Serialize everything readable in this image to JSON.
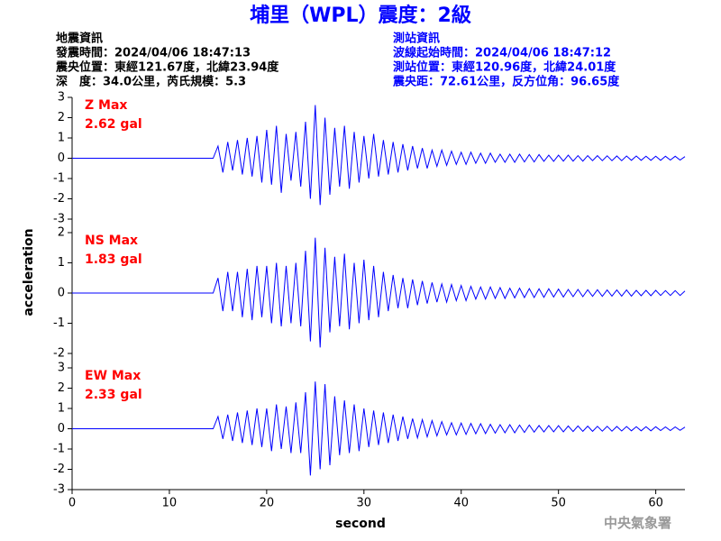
{
  "header": {
    "title": "埔里（WPL）震度：2級",
    "left_info": [
      "地震資訊",
      "發震時間：2024/04/06 18:47:13",
      "震央位置：東經121.67度，北緯23.94度",
      "深　度：34.0公里，芮氏規模：5.3"
    ],
    "right_info": [
      "測站資訊",
      "波線起始時間：2024/04/06 18:47:12",
      "測站位置：東經120.96度，北緯24.01度",
      "震央距：72.61公里，反方位角：96.65度"
    ],
    "footer": "中央氣象署"
  },
  "chart_data": {
    "type": "line",
    "xlabel": "second",
    "ylabel": "acceleration",
    "xlim": [
      0,
      63
    ],
    "xticks": [
      0,
      10,
      20,
      30,
      40,
      50,
      60
    ],
    "x": [
      0,
      0.5,
      1,
      1.5,
      2,
      2.5,
      3,
      3.5,
      4,
      4.5,
      5,
      5.5,
      6,
      6.5,
      7,
      7.5,
      8,
      8.5,
      9,
      9.5,
      10,
      10.5,
      11,
      11.5,
      12,
      12.5,
      13,
      13.5,
      14,
      14.5,
      15,
      15.5,
      16,
      16.5,
      17,
      17.5,
      18,
      18.5,
      19,
      19.5,
      20,
      20.5,
      21,
      21.5,
      22,
      22.5,
      23,
      23.5,
      24,
      24.5,
      25,
      25.5,
      26,
      26.5,
      27,
      27.5,
      28,
      28.5,
      29,
      29.5,
      30,
      30.5,
      31,
      31.5,
      32,
      32.5,
      33,
      33.5,
      34,
      34.5,
      35,
      35.5,
      36,
      36.5,
      37,
      37.5,
      38,
      38.5,
      39,
      39.5,
      40,
      40.5,
      41,
      41.5,
      42,
      42.5,
      43,
      43.5,
      44,
      44.5,
      45,
      45.5,
      46,
      46.5,
      47,
      47.5,
      48,
      48.5,
      49,
      49.5,
      50,
      50.5,
      51,
      51.5,
      52,
      52.5,
      53,
      53.5,
      54,
      54.5,
      55,
      55.5,
      56,
      56.5,
      57,
      57.5,
      58,
      58.5,
      59,
      59.5,
      60,
      60.5,
      61,
      61.5,
      62,
      62.5,
      63
    ],
    "panels": [
      {
        "annotation": [
          "Z Max",
          "2.62 gal"
        ],
        "ylim": [
          -3,
          3
        ],
        "yticks": [
          -3,
          -2,
          -1,
          0,
          1,
          2,
          3
        ],
        "series": [
          {
            "color": "#0000ff",
            "values": [
              0,
              0,
              0,
              0,
              0,
              0,
              0,
              0,
              0,
              0,
              0,
              0,
              0,
              0,
              0,
              0,
              0,
              0,
              0,
              0,
              0,
              0,
              0,
              0,
              0,
              0,
              0,
              0,
              0,
              0,
              0.6,
              -0.7,
              0.8,
              -0.6,
              0.9,
              -0.8,
              1.0,
              -0.9,
              1.1,
              -1.2,
              1.4,
              -1.3,
              1.6,
              -1.7,
              1.2,
              -1.1,
              1.3,
              -1.4,
              1.8,
              -2.0,
              2.62,
              -2.3,
              2.0,
              -1.8,
              1.5,
              -1.4,
              1.6,
              -1.5,
              1.3,
              -1.2,
              1.1,
              -1.0,
              1.2,
              -0.9,
              0.9,
              -0.8,
              0.8,
              -0.7,
              0.7,
              -0.6,
              0.6,
              -0.5,
              0.5,
              -0.5,
              0.4,
              -0.4,
              0.4,
              -0.35,
              0.35,
              -0.3,
              0.3,
              -0.3,
              0.3,
              -0.25,
              0.25,
              -0.25,
              0.25,
              -0.2,
              0.2,
              -0.2,
              0.2,
              -0.2,
              0.2,
              -0.18,
              0.18,
              -0.18,
              0.18,
              -0.15,
              0.15,
              -0.15,
              0.15,
              -0.14,
              0.15,
              -0.14,
              0.13,
              -0.14,
              0.13,
              -0.12,
              0.13,
              -0.12,
              0.12,
              -0.12,
              0.11,
              -0.12,
              0.11,
              -0.1,
              0.11,
              -0.1,
              0.1,
              -0.1,
              0.1,
              -0.1,
              0.1,
              -0.09,
              0.1,
              -0.09,
              0.08
            ]
          }
        ]
      },
      {
        "annotation": [
          "NS Max",
          "1.83 gal"
        ],
        "ylim": [
          -2,
          2
        ],
        "yticks": [
          -2,
          -1,
          0,
          1,
          2
        ],
        "series": [
          {
            "color": "#0000ff",
            "values": [
              0,
              0,
              0,
              0,
              0,
              0,
              0,
              0,
              0,
              0,
              0,
              0,
              0,
              0,
              0,
              0,
              0,
              0,
              0,
              0,
              0,
              0,
              0,
              0,
              0,
              0,
              0,
              0,
              0,
              0,
              0.5,
              -0.6,
              0.7,
              -0.6,
              0.7,
              -0.8,
              0.8,
              -0.9,
              0.9,
              -0.8,
              0.9,
              -1.0,
              1.0,
              -1.1,
              0.9,
              -1.0,
              1.0,
              -1.1,
              1.4,
              -1.6,
              1.83,
              -1.8,
              1.5,
              -1.3,
              1.2,
              -1.1,
              1.3,
              -1.2,
              1.0,
              -1.0,
              1.1,
              -0.9,
              0.9,
              -0.8,
              0.7,
              -0.6,
              0.6,
              -0.5,
              0.5,
              -0.5,
              0.45,
              -0.4,
              0.4,
              -0.35,
              0.35,
              -0.3,
              0.3,
              -0.3,
              0.28,
              -0.25,
              0.25,
              -0.25,
              0.22,
              -0.2,
              0.2,
              -0.2,
              0.2,
              -0.18,
              0.18,
              -0.18,
              0.16,
              -0.16,
              0.16,
              -0.15,
              0.15,
              -0.15,
              0.14,
              -0.14,
              0.14,
              -0.13,
              0.13,
              -0.13,
              0.12,
              -0.12,
              0.12,
              -0.12,
              0.11,
              -0.11,
              0.11,
              -0.11,
              0.1,
              -0.1,
              0.1,
              -0.1,
              0.1,
              -0.1,
              0.09,
              -0.09,
              0.09,
              -0.09,
              0.09,
              -0.08,
              0.08,
              -0.08,
              0.08,
              -0.08,
              0.07
            ]
          }
        ]
      },
      {
        "annotation": [
          "EW Max",
          "2.33 gal"
        ],
        "ylim": [
          -3,
          3
        ],
        "yticks": [
          -3,
          -2,
          -1,
          0,
          1,
          2,
          3
        ],
        "series": [
          {
            "color": "#0000ff",
            "values": [
              0,
              0,
              0,
              0,
              0,
              0,
              0,
              0,
              0,
              0,
              0,
              0,
              0,
              0,
              0,
              0,
              0,
              0,
              0,
              0,
              0,
              0,
              0,
              0,
              0,
              0,
              0,
              0,
              0,
              0,
              0.6,
              -0.5,
              0.7,
              -0.6,
              0.8,
              -0.7,
              0.9,
              -0.8,
              1.0,
              -0.9,
              1.0,
              -1.1,
              1.2,
              -1.0,
              1.1,
              -1.2,
              1.3,
              -1.2,
              1.8,
              -2.3,
              2.33,
              -2.0,
              2.2,
              -1.8,
              1.6,
              -1.3,
              1.4,
              -1.2,
              1.2,
              -1.1,
              1.0,
              -0.9,
              0.9,
              -0.8,
              0.8,
              -0.7,
              0.7,
              -0.6,
              0.6,
              -0.5,
              0.5,
              -0.45,
              0.45,
              -0.4,
              0.4,
              -0.35,
              0.35,
              -0.3,
              0.3,
              -0.3,
              0.28,
              -0.28,
              0.26,
              -0.25,
              0.25,
              -0.24,
              0.22,
              -0.22,
              0.2,
              -0.2,
              0.2,
              -0.2,
              0.18,
              -0.18,
              0.18,
              -0.17,
              0.16,
              -0.16,
              0.16,
              -0.15,
              0.15,
              -0.15,
              0.14,
              -0.14,
              0.14,
              -0.13,
              0.13,
              -0.13,
              0.12,
              -0.12,
              0.12,
              -0.12,
              0.11,
              -0.11,
              0.11,
              -0.1,
              0.1,
              -0.1,
              0.1,
              -0.1,
              0.1,
              -0.09,
              0.09,
              -0.09,
              0.09,
              -0.08,
              0.08
            ]
          }
        ]
      }
    ]
  }
}
